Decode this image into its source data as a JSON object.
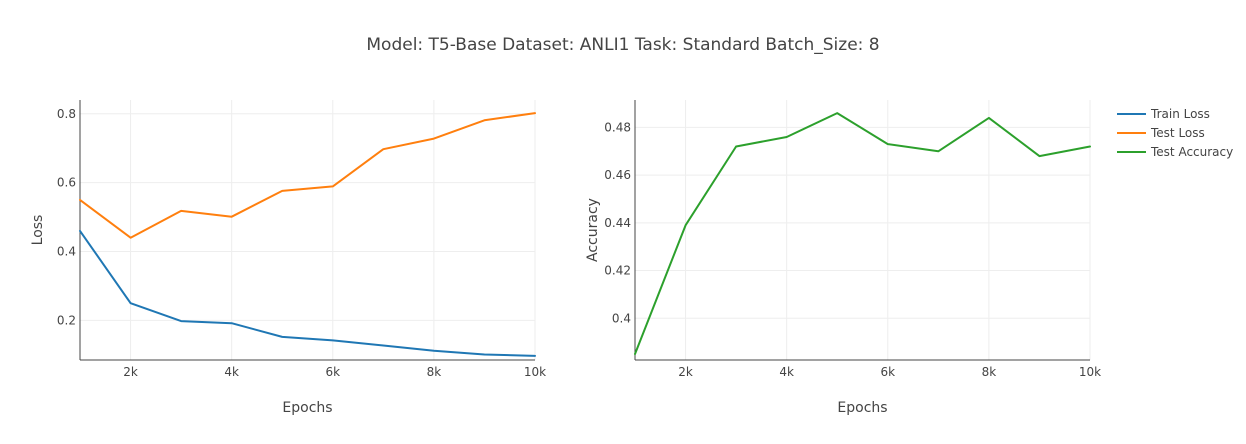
{
  "title": "Model: T5-Base Dataset: ANLI1 Task: Standard Batch_Size: 8",
  "colors": {
    "train_loss": "#1f77b4",
    "test_loss": "#ff7f0e",
    "test_accuracy": "#2ca02c",
    "grid": "#eeeeee",
    "axis": "#444444",
    "text": "#444444"
  },
  "legend": {
    "placement": "top-right",
    "items": [
      {
        "label": "Train Loss",
        "color": "#1f77b4"
      },
      {
        "label": "Test Loss",
        "color": "#ff7f0e"
      },
      {
        "label": "Test Accuracy",
        "color": "#2ca02c"
      }
    ]
  },
  "chart_data": [
    {
      "type": "line",
      "xlabel": "Epochs",
      "ylabel": "Loss",
      "xlim": [
        1000,
        10000
      ],
      "ylim": [
        0.085,
        0.84
      ],
      "grid": true,
      "xticks": [
        2000,
        4000,
        6000,
        8000,
        10000
      ],
      "xtick_labels": [
        "2k",
        "4k",
        "6k",
        "8k",
        "10k"
      ],
      "yticks": [
        0.2,
        0.4,
        0.6,
        0.8
      ],
      "ytick_labels": [
        "0.2",
        "0.4",
        "0.6",
        "0.8"
      ],
      "x": [
        1000,
        2000,
        3000,
        4000,
        5000,
        6000,
        7000,
        8000,
        9000,
        10000
      ],
      "series": [
        {
          "name": "Train Loss",
          "color": "#1f77b4",
          "values": [
            0.46,
            0.25,
            0.198,
            0.192,
            0.152,
            0.142,
            0.127,
            0.112,
            0.101,
            0.097
          ]
        },
        {
          "name": "Test Loss",
          "color": "#ff7f0e",
          "values": [
            0.55,
            0.44,
            0.518,
            0.501,
            0.576,
            0.589,
            0.697,
            0.728,
            0.781,
            0.802
          ]
        }
      ]
    },
    {
      "type": "line",
      "xlabel": "Epochs",
      "ylabel": "Accuracy",
      "xlim": [
        1000,
        10000
      ],
      "ylim": [
        0.3825,
        0.4915
      ],
      "grid": true,
      "xticks": [
        2000,
        4000,
        6000,
        8000,
        10000
      ],
      "xtick_labels": [
        "2k",
        "4k",
        "6k",
        "8k",
        "10k"
      ],
      "yticks": [
        0.4,
        0.42,
        0.44,
        0.46,
        0.48
      ],
      "ytick_labels": [
        "0.4",
        "0.42",
        "0.44",
        "0.46",
        "0.48"
      ],
      "x": [
        1000,
        2000,
        3000,
        4000,
        5000,
        6000,
        7000,
        8000,
        9000,
        10000
      ],
      "series": [
        {
          "name": "Test Accuracy",
          "color": "#2ca02c",
          "values": [
            0.385,
            0.439,
            0.472,
            0.476,
            0.486,
            0.473,
            0.47,
            0.484,
            0.468,
            0.472
          ]
        }
      ]
    }
  ]
}
